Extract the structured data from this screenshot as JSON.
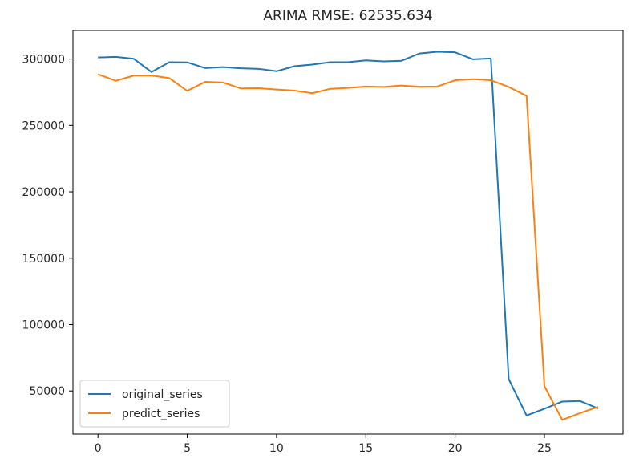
{
  "chart_data": {
    "type": "line",
    "title": "ARIMA RMSE: 62535.634",
    "xlabel": "",
    "ylabel": "",
    "x": [
      0,
      1,
      2,
      3,
      4,
      5,
      6,
      7,
      8,
      9,
      10,
      11,
      12,
      13,
      14,
      15,
      16,
      17,
      18,
      19,
      20,
      21,
      22,
      23,
      24,
      25,
      26,
      27,
      28
    ],
    "xlim": [
      -1.4,
      29.4
    ],
    "ylim": [
      17500,
      321500
    ],
    "x_ticks": [
      0,
      5,
      10,
      15,
      20,
      25
    ],
    "x_tick_labels": [
      "0",
      "5",
      "10",
      "15",
      "20",
      "25"
    ],
    "y_ticks": [
      50000,
      100000,
      150000,
      200000,
      250000,
      300000
    ],
    "y_tick_labels": [
      "50000",
      "100000",
      "150000",
      "200000",
      "250000",
      "300000"
    ],
    "grid": false,
    "legend_position": "lower-left",
    "series": [
      {
        "name": "original_series",
        "color": "#1f77b4",
        "values": [
          301200,
          301600,
          300200,
          290200,
          297600,
          297500,
          293200,
          293900,
          293000,
          292600,
          290800,
          294600,
          295800,
          297600,
          297600,
          299000,
          298200,
          298700,
          304200,
          305500,
          305100,
          299800,
          300400,
          59000,
          31500,
          36600,
          42000,
          42400,
          36800
        ]
      },
      {
        "name": "predict_series",
        "color": "#ff7f0e",
        "values": [
          288500,
          283600,
          287500,
          287600,
          285600,
          276000,
          282800,
          282300,
          277800,
          278000,
          277000,
          276200,
          274200,
          277500,
          278200,
          279300,
          279000,
          280000,
          279100,
          279300,
          284000,
          284800,
          284000,
          279000,
          272200,
          53600,
          28200,
          33300,
          38000
        ]
      }
    ]
  }
}
